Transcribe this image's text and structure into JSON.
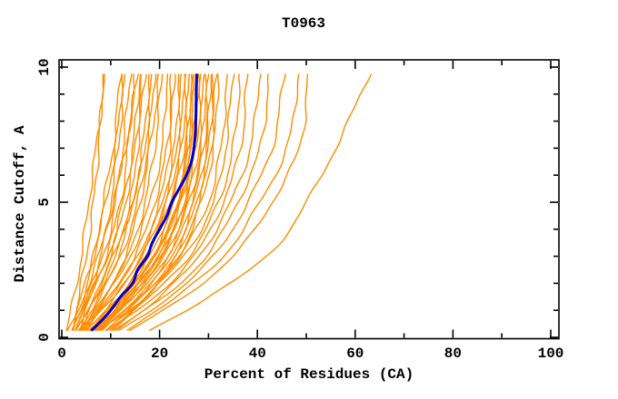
{
  "figure": {
    "title": "T0963"
  },
  "chart_data": {
    "type": "line",
    "title": "T0963",
    "xlabel": "Percent of Residues (CA)",
    "ylabel": "Distance Cutoff, A",
    "xlim": [
      0,
      100
    ],
    "ylim": [
      0,
      10
    ],
    "x_major_ticks": [
      0,
      20,
      40,
      60,
      80,
      100
    ],
    "x_minor_ticks": [
      10,
      30,
      50,
      70,
      90
    ],
    "y_major_ticks": [
      0,
      5,
      10
    ],
    "y_minor_ticks": [
      1,
      2,
      3,
      4,
      6,
      7,
      8,
      9
    ],
    "grid": false,
    "legend": "none",
    "background_color": "#ffffff",
    "frame_color": "#000000",
    "model_curve_color": "#FF8C00",
    "highlighted_curve_color": "#0000CC",
    "cutoff_stations": [
      0.25,
      1.5,
      3,
      5,
      7,
      9.75
    ],
    "highlighted_curve": {
      "name": "highlighted-model",
      "points": [
        [
          0.25,
          6
        ],
        [
          0.5,
          7.5
        ],
        [
          1,
          10
        ],
        [
          1.5,
          12
        ],
        [
          2,
          14.5
        ],
        [
          2.5,
          15.5
        ],
        [
          3,
          17.5
        ],
        [
          3.5,
          18.5
        ],
        [
          4,
          20
        ],
        [
          4.5,
          21.5
        ],
        [
          5,
          22.5
        ],
        [
          5.5,
          24
        ],
        [
          6,
          25.5
        ],
        [
          6.5,
          26.5
        ],
        [
          7,
          27
        ],
        [
          7.5,
          27.3
        ],
        [
          8,
          27.4
        ],
        [
          9,
          27.5
        ],
        [
          9.75,
          27.6
        ]
      ]
    },
    "model_curves": [
      {
        "name": "model-01",
        "percents": [
          2,
          3.5,
          5,
          6.5,
          7.5,
          8.4
        ]
      },
      {
        "name": "model-02",
        "percents": [
          1,
          2.5,
          4,
          5.5,
          7,
          9
        ]
      },
      {
        "name": "model-03",
        "percents": [
          2.5,
          4.5,
          6.5,
          8.5,
          10.5,
          12
        ]
      },
      {
        "name": "model-04",
        "percents": [
          2,
          4,
          6.5,
          9,
          11,
          12.5
        ]
      },
      {
        "name": "model-05",
        "percents": [
          3,
          5.5,
          8,
          10,
          11.5,
          13
        ]
      },
      {
        "name": "model-06",
        "percents": [
          2,
          5,
          8.5,
          11,
          12.5,
          14
        ]
      },
      {
        "name": "model-07",
        "percents": [
          3.5,
          6,
          9,
          12,
          13.5,
          15
        ]
      },
      {
        "name": "model-08",
        "percents": [
          1.5,
          4.5,
          7.5,
          10.5,
          13,
          15.5
        ]
      },
      {
        "name": "model-09",
        "percents": [
          2.5,
          5.5,
          9.5,
          12.5,
          14.5,
          16
        ]
      },
      {
        "name": "model-10",
        "percents": [
          4,
          7,
          10,
          13,
          15,
          16.5
        ]
      },
      {
        "name": "model-11",
        "percents": [
          3,
          6.5,
          10.5,
          14,
          15.5,
          17
        ]
      },
      {
        "name": "model-12",
        "percents": [
          4.5,
          8,
          11.5,
          14.5,
          16.5,
          18
        ]
      },
      {
        "name": "model-13",
        "percents": [
          3,
          7,
          11,
          14.5,
          17,
          18.5
        ]
      },
      {
        "name": "model-14",
        "percents": [
          3.5,
          7.5,
          12,
          15.5,
          17.5,
          19
        ]
      },
      {
        "name": "model-15",
        "percents": [
          5,
          9,
          13,
          16,
          18,
          20
        ]
      },
      {
        "name": "model-16",
        "percents": [
          4,
          8.5,
          13.5,
          17,
          19,
          20.5
        ]
      },
      {
        "name": "model-17",
        "percents": [
          4,
          9,
          14,
          18,
          20.5,
          21.5
        ]
      },
      {
        "name": "model-18",
        "percents": [
          5,
          10,
          15,
          19,
          21.5,
          22.5
        ]
      },
      {
        "name": "model-19",
        "percents": [
          3.5,
          9.5,
          15.5,
          20,
          22,
          23
        ]
      },
      {
        "name": "model-20",
        "percents": [
          6,
          11,
          16,
          20.5,
          23,
          24
        ]
      },
      {
        "name": "model-21",
        "percents": [
          4.5,
          10.5,
          16.5,
          21,
          23.5,
          24.5
        ]
      },
      {
        "name": "model-22",
        "percents": [
          5.5,
          12,
          17,
          21.5,
          24,
          25
        ]
      },
      {
        "name": "model-23",
        "percents": [
          6.5,
          12.5,
          17.5,
          22,
          24.5,
          25.5
        ]
      },
      {
        "name": "model-24",
        "percents": [
          5,
          11.5,
          18,
          22.5,
          25,
          26
        ]
      },
      {
        "name": "model-25",
        "percents": [
          7,
          13,
          18.5,
          23,
          25.5,
          26.5
        ]
      },
      {
        "name": "model-26",
        "percents": [
          6,
          12,
          19,
          23.5,
          26,
          27
        ]
      },
      {
        "name": "model-27",
        "percents": [
          6,
          13.5,
          19,
          24,
          26,
          26.8
        ]
      },
      {
        "name": "model-28",
        "percents": [
          7.5,
          13.5,
          19.5,
          24,
          26.5,
          27.5
        ]
      },
      {
        "name": "model-29",
        "percents": [
          7,
          14,
          20,
          25,
          27,
          27.8
        ]
      },
      {
        "name": "model-30",
        "percents": [
          5.5,
          13,
          20,
          24.5,
          27,
          28
        ]
      },
      {
        "name": "model-31",
        "percents": [
          8,
          14,
          20.5,
          25,
          27.5,
          28.5
        ]
      },
      {
        "name": "model-32",
        "percents": [
          6.5,
          14.5,
          21,
          25.5,
          28,
          29
        ]
      },
      {
        "name": "model-33",
        "percents": [
          7,
          15,
          21.5,
          26,
          28.5,
          29.5
        ]
      },
      {
        "name": "model-34",
        "percents": [
          8.5,
          15.5,
          22,
          26.5,
          29,
          30
        ]
      },
      {
        "name": "model-35",
        "percents": [
          7.5,
          16,
          22.5,
          27,
          29.5,
          30.5
        ]
      },
      {
        "name": "model-36",
        "percents": [
          9,
          16.5,
          23,
          27.5,
          30,
          31
        ]
      },
      {
        "name": "model-37",
        "percents": [
          8,
          17,
          23.5,
          28,
          30.5,
          31.5
        ]
      },
      {
        "name": "model-38",
        "percents": [
          9.5,
          17.5,
          24,
          28.5,
          31,
          32
        ]
      },
      {
        "name": "model-39",
        "percents": [
          8,
          16,
          24,
          30,
          32.5,
          34
        ]
      },
      {
        "name": "model-40",
        "percents": [
          9,
          17,
          25,
          31,
          33.5,
          35
        ]
      },
      {
        "name": "model-41",
        "percents": [
          10,
          18,
          26,
          32,
          35,
          36.5
        ]
      },
      {
        "name": "model-42",
        "percents": [
          9.5,
          19,
          27,
          33,
          36.5,
          38
        ]
      },
      {
        "name": "model-43",
        "percents": [
          11,
          20,
          28,
          34.5,
          38.5,
          40.5
        ]
      },
      {
        "name": "model-44",
        "percents": [
          10.5,
          21,
          29.5,
          36,
          40.5,
          42.5
        ]
      },
      {
        "name": "model-45",
        "percents": [
          12,
          22,
          31,
          38,
          43,
          45.5
        ]
      },
      {
        "name": "model-46",
        "percents": [
          13,
          23.5,
          33,
          40.5,
          46,
          48.5
        ]
      },
      {
        "name": "model-47",
        "percents": [
          14,
          25,
          35,
          43,
          48.5,
          50.5
        ]
      },
      {
        "name": "model-48",
        "percents": [
          18,
          30,
          42,
          50,
          56,
          63
        ]
      }
    ]
  }
}
